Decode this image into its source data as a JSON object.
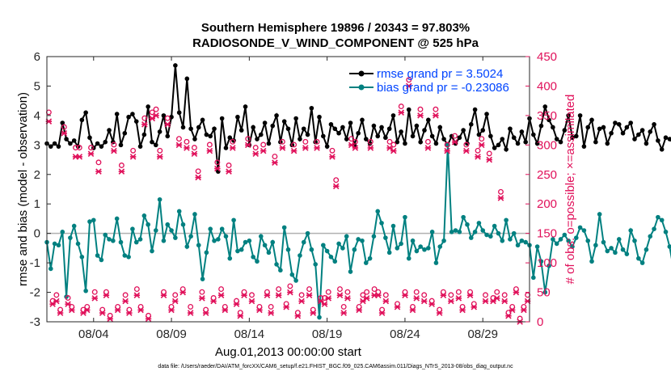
{
  "chart_data": {
    "type": "line",
    "title_line1": "Southern Hemisphere 19896 / 20343 = 97.803%",
    "title_line2": "RADIOSONDE_V_WIND_COMPONENT @ 525 hPa",
    "xlabel": "Aug.01,2013 00:00:00 start",
    "ylabel_left": "rmse and bias (model - observation)",
    "ylabel_right": "# of obs: o=possible; ×=assimilated",
    "x_ticks": [
      {
        "x": 3.5,
        "label": "08/04"
      },
      {
        "x": 8.5,
        "label": "08/09"
      },
      {
        "x": 13.5,
        "label": "08/14"
      },
      {
        "x": 18.5,
        "label": "08/19"
      },
      {
        "x": 23.5,
        "label": "08/24"
      },
      {
        "x": 28.5,
        "label": "08/29"
      }
    ],
    "xlim": [
      0.5,
      31.5
    ],
    "ylim_left": [
      -3,
      6
    ],
    "yticks_left": [
      -3,
      -2,
      -1,
      0,
      1,
      2,
      3,
      4,
      5,
      6
    ],
    "ylim_right": [
      0,
      450
    ],
    "yticks_right": [
      0,
      50,
      100,
      150,
      200,
      250,
      300,
      350,
      400,
      450
    ],
    "x_step": 0.25,
    "x_start": 0.5,
    "series": [
      {
        "name": "rmse grand pr = 3.5024",
        "axis": "left",
        "color": "#000000",
        "values": [
          3.05,
          2.95,
          3.05,
          2.95,
          3.75,
          3.2,
          3.05,
          3.15,
          2.95,
          3.85,
          4.1,
          3.25,
          2.9,
          3.05,
          2.95,
          3.1,
          3.5,
          3.1,
          4.05,
          3.0,
          3.4,
          3.95,
          4.05,
          3.8,
          2.95,
          3.35,
          4.3,
          3.1,
          3.0,
          3.45,
          4.0,
          3.3,
          3.95,
          5.7,
          4.1,
          3.6,
          5.25,
          3.55,
          3.2,
          3.6,
          3.85,
          3.35,
          3.3,
          3.55,
          2.1,
          3.9,
          2.9,
          3.25,
          3.15,
          3.95,
          3.5,
          4.3,
          3.0,
          3.6,
          3.2,
          3.35,
          3.75,
          3.05,
          3.65,
          4.0,
          3.1,
          3.8,
          3.55,
          3.0,
          3.9,
          3.2,
          3.55,
          3.35,
          4.25,
          3.1,
          3.95,
          3.3,
          2.95,
          3.7,
          3.55,
          3.4,
          3.6,
          3.2,
          3.75,
          3.0,
          3.4,
          3.85,
          3.2,
          3.05,
          3.65,
          3.3,
          3.6,
          3.25,
          3.55,
          4.0,
          3.1,
          3.45,
          3.05,
          4.2,
          3.3,
          3.65,
          3.1,
          3.5,
          3.85,
          3.3,
          3.05,
          3.6,
          3.2,
          3.0,
          3.3,
          3.05,
          3.25,
          3.5,
          3.05,
          3.7,
          4.2,
          3.35,
          3.5,
          4.05,
          3.3,
          2.9,
          3.0,
          3.2,
          2.85,
          3.55,
          3.25,
          3.05,
          3.45,
          3.1,
          3.9,
          3.35,
          3.05,
          3.65,
          4.3,
          3.85,
          3.6,
          3.2,
          3.1,
          3.5,
          4.0,
          3.25,
          3.3,
          4.0,
          2.95,
          3.6,
          3.85,
          3.1,
          3.55,
          3.6,
          3.05,
          3.4,
          3.75,
          3.7,
          3.4,
          3.6,
          3.75,
          3.2,
          3.35,
          3.5,
          3.05,
          3.45,
          3.7,
          3.15,
          2.85,
          3.25,
          3.2,
          3.05,
          3.6,
          3.05,
          3.65,
          4.1,
          3.45
        ]
      },
      {
        "name": "bias grand pr = -0.23086",
        "axis": "left",
        "color": "#008080",
        "values": [
          -0.3,
          -1.2,
          -0.35,
          -0.4,
          0.05,
          -2.15,
          -0.15,
          0.25,
          -0.35,
          -0.8,
          -1.95,
          0.4,
          0.45,
          -0.75,
          -0.9,
          -0.05,
          -0.2,
          -0.25,
          0.5,
          -0.3,
          -0.75,
          -0.8,
          0.15,
          -0.3,
          -0.2,
          0.6,
          0.3,
          -0.6,
          0.1,
          1.15,
          -0.25,
          0.3,
          0.1,
          -0.15,
          0.75,
          0.3,
          -0.45,
          -0.1,
          0.65,
          -0.4,
          -1.55,
          -0.65,
          0.15,
          -0.25,
          -0.2,
          0.15,
          -0.1,
          -0.85,
          0.45,
          -0.6,
          -0.55,
          -0.3,
          -0.25,
          -0.8,
          -0.95,
          -0.1,
          -0.4,
          -0.65,
          -0.3,
          -1.05,
          -1.25,
          0.2,
          -0.55,
          -1.4,
          -1.6,
          -0.75,
          -0.3,
          0.0,
          -0.55,
          -1.05,
          -2.85,
          -0.4,
          -0.6,
          -0.8,
          -0.95,
          -0.35,
          -0.5,
          -0.1,
          -1.3,
          -0.55,
          -0.2,
          -0.25,
          -1.0,
          -0.85,
          -0.1,
          0.75,
          0.35,
          -0.15,
          -0.65,
          0.25,
          -0.5,
          -0.35,
          0.55,
          -0.85,
          -0.25,
          -0.6,
          -0.45,
          -0.55,
          -0.5,
          0.05,
          -1.0,
          -0.45,
          -0.25,
          3.0,
          0.05,
          0.1,
          0.05,
          0.55,
          0.3,
          -0.15,
          0.05,
          0.35,
          0.1,
          -0.05,
          -0.1,
          0.25,
          0.0,
          -0.25,
          0.45,
          -0.2,
          0.0,
          -0.4,
          -0.25,
          -0.3,
          -0.4,
          -1.5,
          -0.45,
          -0.95,
          -2.0,
          -1.1,
          -0.2,
          -0.35,
          -0.2,
          -0.05,
          -0.25,
          -0.45,
          -0.15,
          0.2,
          0.1,
          -0.25,
          -0.95,
          -0.4,
          0.65,
          -0.3,
          -0.6,
          -0.5,
          -0.65,
          -0.2,
          -0.55,
          -0.7,
          0.1,
          -0.25,
          -0.85,
          -1.0,
          -0.55,
          -0.1,
          0.15,
          0.55,
          0.45,
          0.05,
          -0.45,
          -1.2,
          -0.25,
          0.0,
          0.5
        ]
      }
    ],
    "obs_possible": {
      "axis": "right",
      "marker": "o",
      "color": "#e0105a",
      "values": [
        350,
        30,
        40,
        15,
        325,
        35,
        20,
        290,
        290,
        15,
        20,
        290,
        45,
        265,
        15,
        45,
        5,
        295,
        20,
        260,
        40,
        15,
        285,
        50,
        20,
        340,
        5,
        350,
        355,
        285,
        45,
        340,
        20,
        40,
        305,
        50,
        300,
        20,
        290,
        250,
        45,
        15,
        295,
        35,
        265,
        50,
        20,
        260,
        300,
        30,
        10,
        45,
        305,
        40,
        290,
        20,
        295,
        45,
        20,
        275,
        50,
        300,
        25,
        55,
        295,
        10,
        40,
        300,
        50,
        15,
        300,
        35,
        35,
        45,
        285,
        235,
        50,
        20,
        45,
        305,
        300,
        20,
        40,
        45,
        300,
        50,
        45,
        15,
        40,
        300,
        295,
        25,
        360,
        45,
        405,
        20,
        45,
        355,
        40,
        300,
        30,
        355,
        15,
        45,
        295,
        40,
        310,
        45,
        20,
        295,
        45,
        25,
        285,
        305,
        40,
        280,
        35,
        45,
        215,
        40,
        10,
        20,
        50,
        0,
        20,
        40
      ]
    },
    "obs_assimilated": {
      "axis": "right",
      "marker": "x",
      "color": "#e0105a",
      "values": [
        340,
        30,
        35,
        15,
        320,
        30,
        20,
        280,
        280,
        15,
        20,
        285,
        40,
        255,
        15,
        45,
        5,
        290,
        20,
        255,
        35,
        15,
        280,
        45,
        20,
        335,
        5,
        345,
        350,
        280,
        45,
        335,
        20,
        35,
        300,
        50,
        295,
        15,
        285,
        245,
        40,
        15,
        290,
        35,
        260,
        45,
        20,
        255,
        295,
        30,
        10,
        45,
        300,
        35,
        285,
        20,
        290,
        45,
        15,
        270,
        45,
        295,
        25,
        50,
        290,
        10,
        35,
        295,
        45,
        15,
        295,
        35,
        30,
        40,
        280,
        230,
        45,
        15,
        40,
        300,
        295,
        20,
        35,
        40,
        295,
        45,
        45,
        15,
        35,
        295,
        290,
        25,
        355,
        45,
        400,
        20,
        40,
        350,
        35,
        295,
        30,
        350,
        15,
        45,
        290,
        35,
        305,
        40,
        20,
        290,
        45,
        25,
        280,
        300,
        35,
        275,
        35,
        40,
        210,
        35,
        10,
        20,
        50,
        0,
        20,
        35
      ]
    }
  },
  "footer": {
    "data_file": "data file: /Users/raeder/DAI/ATM_forcXX/CAM6_setup/f.e21.FHIST_BGC.f09_025.CAM6assim.011/Diags_NTrS_2013-08/obs_diag_output.nc"
  }
}
